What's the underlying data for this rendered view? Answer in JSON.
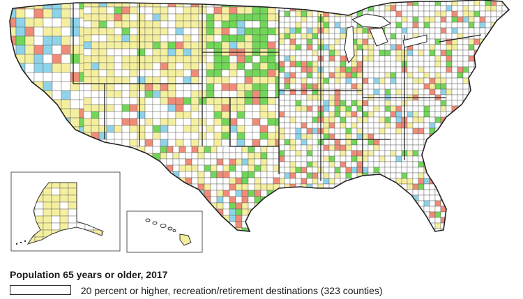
{
  "map": {
    "title": "Population 65 years or older, 2017",
    "legend": [
      {
        "label": "20 percent or higher, recreation/retirement destinations (323 counties)",
        "swatch_color": "#ffffff",
        "swatch_border": "#2a2a2a"
      }
    ],
    "category_colors": {
      "none": "#ffffff",
      "yellow": "#f5f0a0",
      "green": "#72d659",
      "blue": "#8fd3ea",
      "salmon": "#ef8c78"
    },
    "insets": [
      "Alaska",
      "Hawaii"
    ]
  }
}
